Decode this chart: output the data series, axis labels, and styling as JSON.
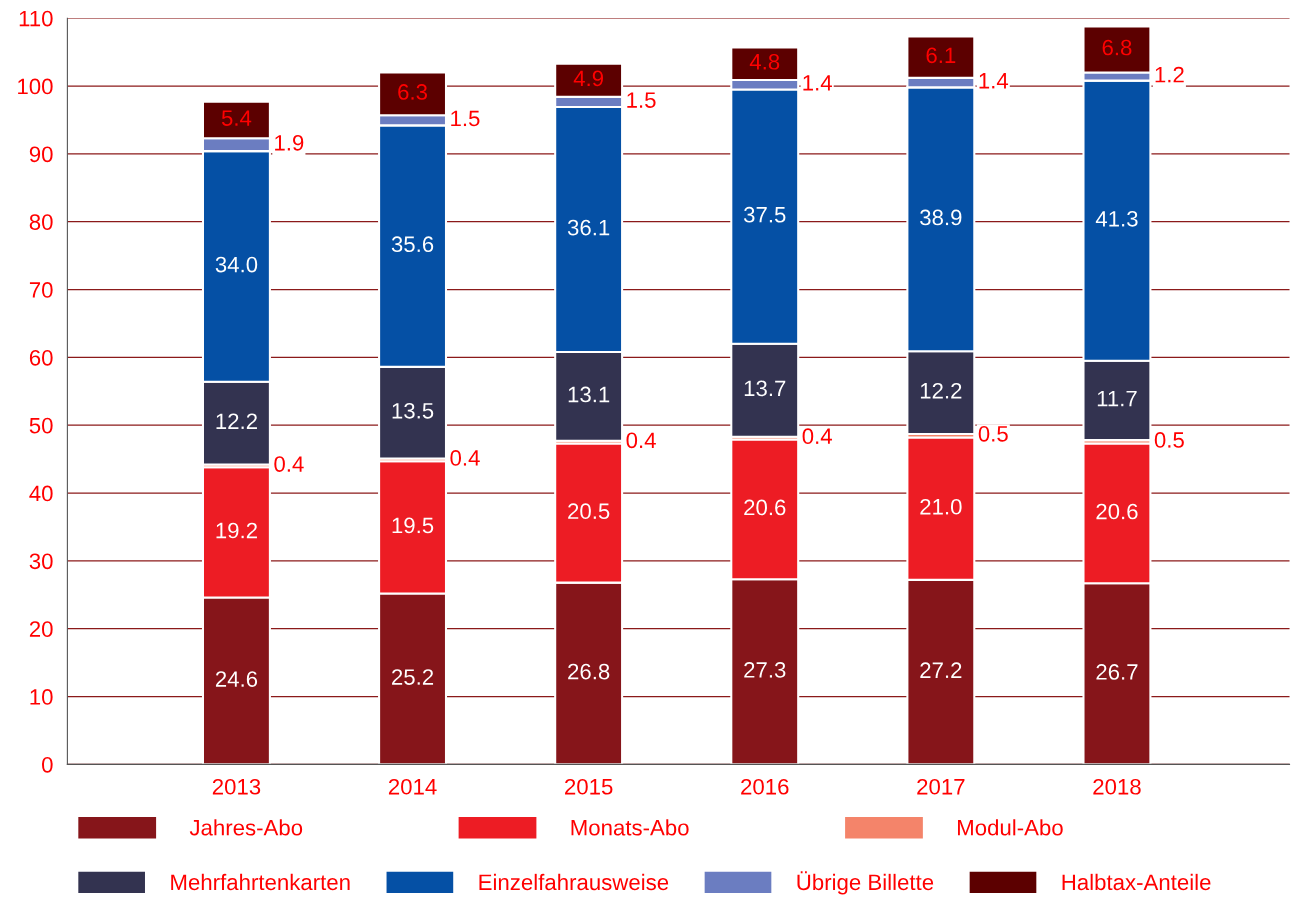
{
  "chart_data": {
    "type": "bar",
    "stacked": true,
    "categories": [
      "2013",
      "2014",
      "2015",
      "2016",
      "2017",
      "2018"
    ],
    "series": [
      {
        "name": "Jahres-Abo",
        "color": "#86151a",
        "values": [
          24.6,
          25.2,
          26.8,
          27.3,
          27.2,
          26.7
        ],
        "value_labels": [
          "24.6",
          "25.2",
          "26.8",
          "27.3",
          "27.2",
          "26.7"
        ]
      },
      {
        "name": "Monats-Abo",
        "color": "#ed1c24",
        "values": [
          19.2,
          19.5,
          20.5,
          20.6,
          21.0,
          20.6
        ],
        "value_labels": [
          "19.2",
          "19.5",
          "20.5",
          "20.6",
          "21.0",
          "20.6"
        ]
      },
      {
        "name": "Modul-Abo",
        "color": "#f4846a",
        "values": [
          0.4,
          0.4,
          0.4,
          0.4,
          0.5,
          0.5
        ],
        "value_labels": [
          "0.4",
          "0.4",
          "0.4",
          "0.4",
          "0.5",
          "0.5"
        ]
      },
      {
        "name": "Mehrfahrtenkarten",
        "color": "#333350",
        "values": [
          12.2,
          13.5,
          13.1,
          13.7,
          12.2,
          11.7
        ],
        "value_labels": [
          "12.2",
          "13.5",
          "13.1",
          "13.7",
          "12.2",
          "11.7"
        ]
      },
      {
        "name": "Einzelfahrausweise",
        "color": "#0550a5",
        "values": [
          34.0,
          35.6,
          36.1,
          37.5,
          38.9,
          41.3
        ],
        "value_labels": [
          "34.0",
          "35.6",
          "36.1",
          "37.5",
          "38.9",
          "41.3"
        ]
      },
      {
        "name": "Übrige Billette",
        "color": "#6b7dc1",
        "values": [
          1.9,
          1.5,
          1.5,
          1.4,
          1.4,
          1.2
        ],
        "value_labels": [
          "1.9",
          "1.5",
          "1.5",
          "1.4",
          "1.4",
          "1.2"
        ]
      },
      {
        "name": "Halbtax-Anteile",
        "color": "#5c0000",
        "values": [
          5.4,
          6.3,
          4.9,
          4.8,
          6.1,
          6.8
        ],
        "value_labels": [
          "5.4",
          "6.3",
          "4.9",
          "4.8",
          "6.1",
          "6.8"
        ]
      }
    ],
    "ylim": [
      0,
      110
    ],
    "yticks": [
      0,
      10,
      20,
      30,
      40,
      50,
      60,
      70,
      80,
      90,
      100,
      110
    ],
    "grid": "y",
    "legend": "bottom"
  }
}
